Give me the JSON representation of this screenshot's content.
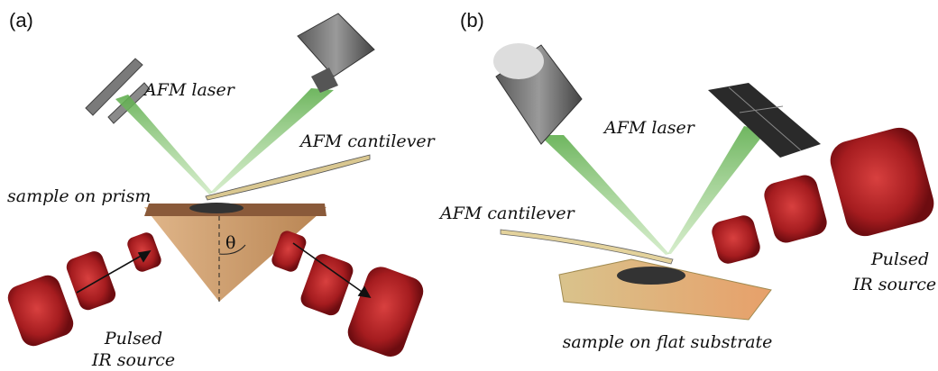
{
  "panels": [
    {
      "label": "(a)",
      "laser_label": "AFM laser",
      "cantilever_label": "AFM cantilever",
      "sample_label": "sample on prism",
      "angle_label": "θ",
      "source_label": [
        "Pulsed",
        "IR source"
      ]
    },
    {
      "label": "(b)",
      "laser_label": "AFM laser",
      "cantilever_label": "AFM cantilever",
      "sample_label": "sample on flat substrate",
      "source_label": [
        "Pulsed",
        "IR source"
      ]
    }
  ]
}
